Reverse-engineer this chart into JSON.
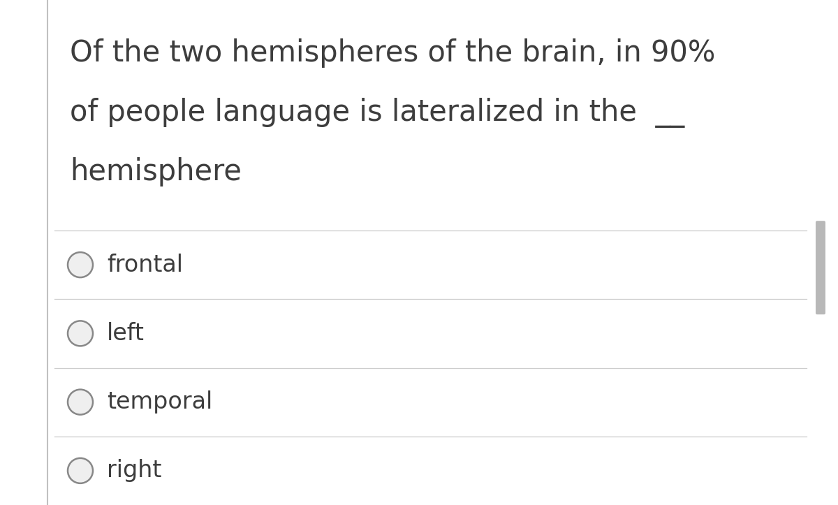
{
  "background_color": "#ffffff",
  "left_border_color": "#c0c0c0",
  "right_scrollbar_color": "#b8b8b8",
  "question_lines": [
    "Of the two hemispheres of the brain, in 90%",
    "of people language is lateralized in the  __",
    "hemisphere"
  ],
  "options": [
    "frontal",
    "left",
    "temporal",
    "right"
  ],
  "text_color": "#3d3d3d",
  "circle_edge_color": "#888888",
  "circle_face_color": "#efefef",
  "divider_color": "#cccccc",
  "font_size_question": 30,
  "font_size_options": 24,
  "fig_width": 12.0,
  "fig_height": 7.23,
  "dpi": 100
}
